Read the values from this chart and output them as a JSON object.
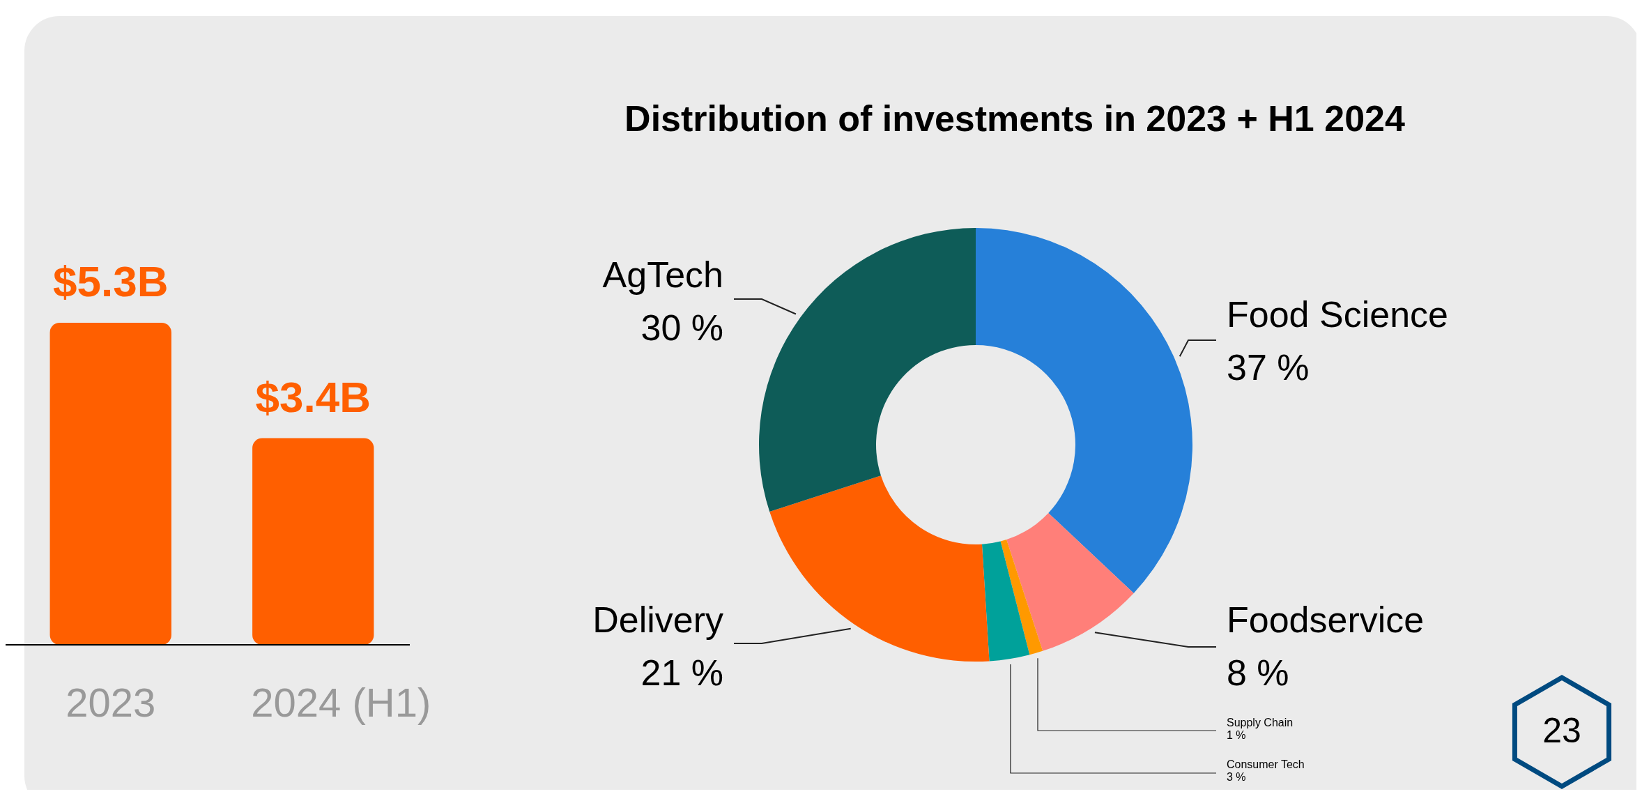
{
  "chart_data": [
    {
      "type": "bar",
      "categories": [
        "2023",
        "2024 (H1)"
      ],
      "values": [
        5.3,
        3.4
      ],
      "color": "#ff5f00",
      "value_labels": [
        "$5.3B",
        "$3.4B"
      ]
    },
    {
      "type": "donut",
      "title": "Distribution of investments in 2023 + H1 2024",
      "categories": [
        "Food Science",
        "Foodservice",
        "Supply Chain",
        "Consumer Tech",
        "Delivery",
        "AgTech"
      ],
      "values": [
        37,
        8,
        1,
        3,
        21,
        30
      ],
      "colors": [
        "#2680d9",
        "#ff7f79",
        "#ff9900",
        "#00a19a",
        "#ff5f00",
        "#0e5c58"
      ],
      "value_labels": [
        "37 %",
        "8 %",
        "1 %",
        "3 %",
        "21 %",
        "30 %"
      ],
      "annotations": [
        "23"
      ]
    }
  ]
}
